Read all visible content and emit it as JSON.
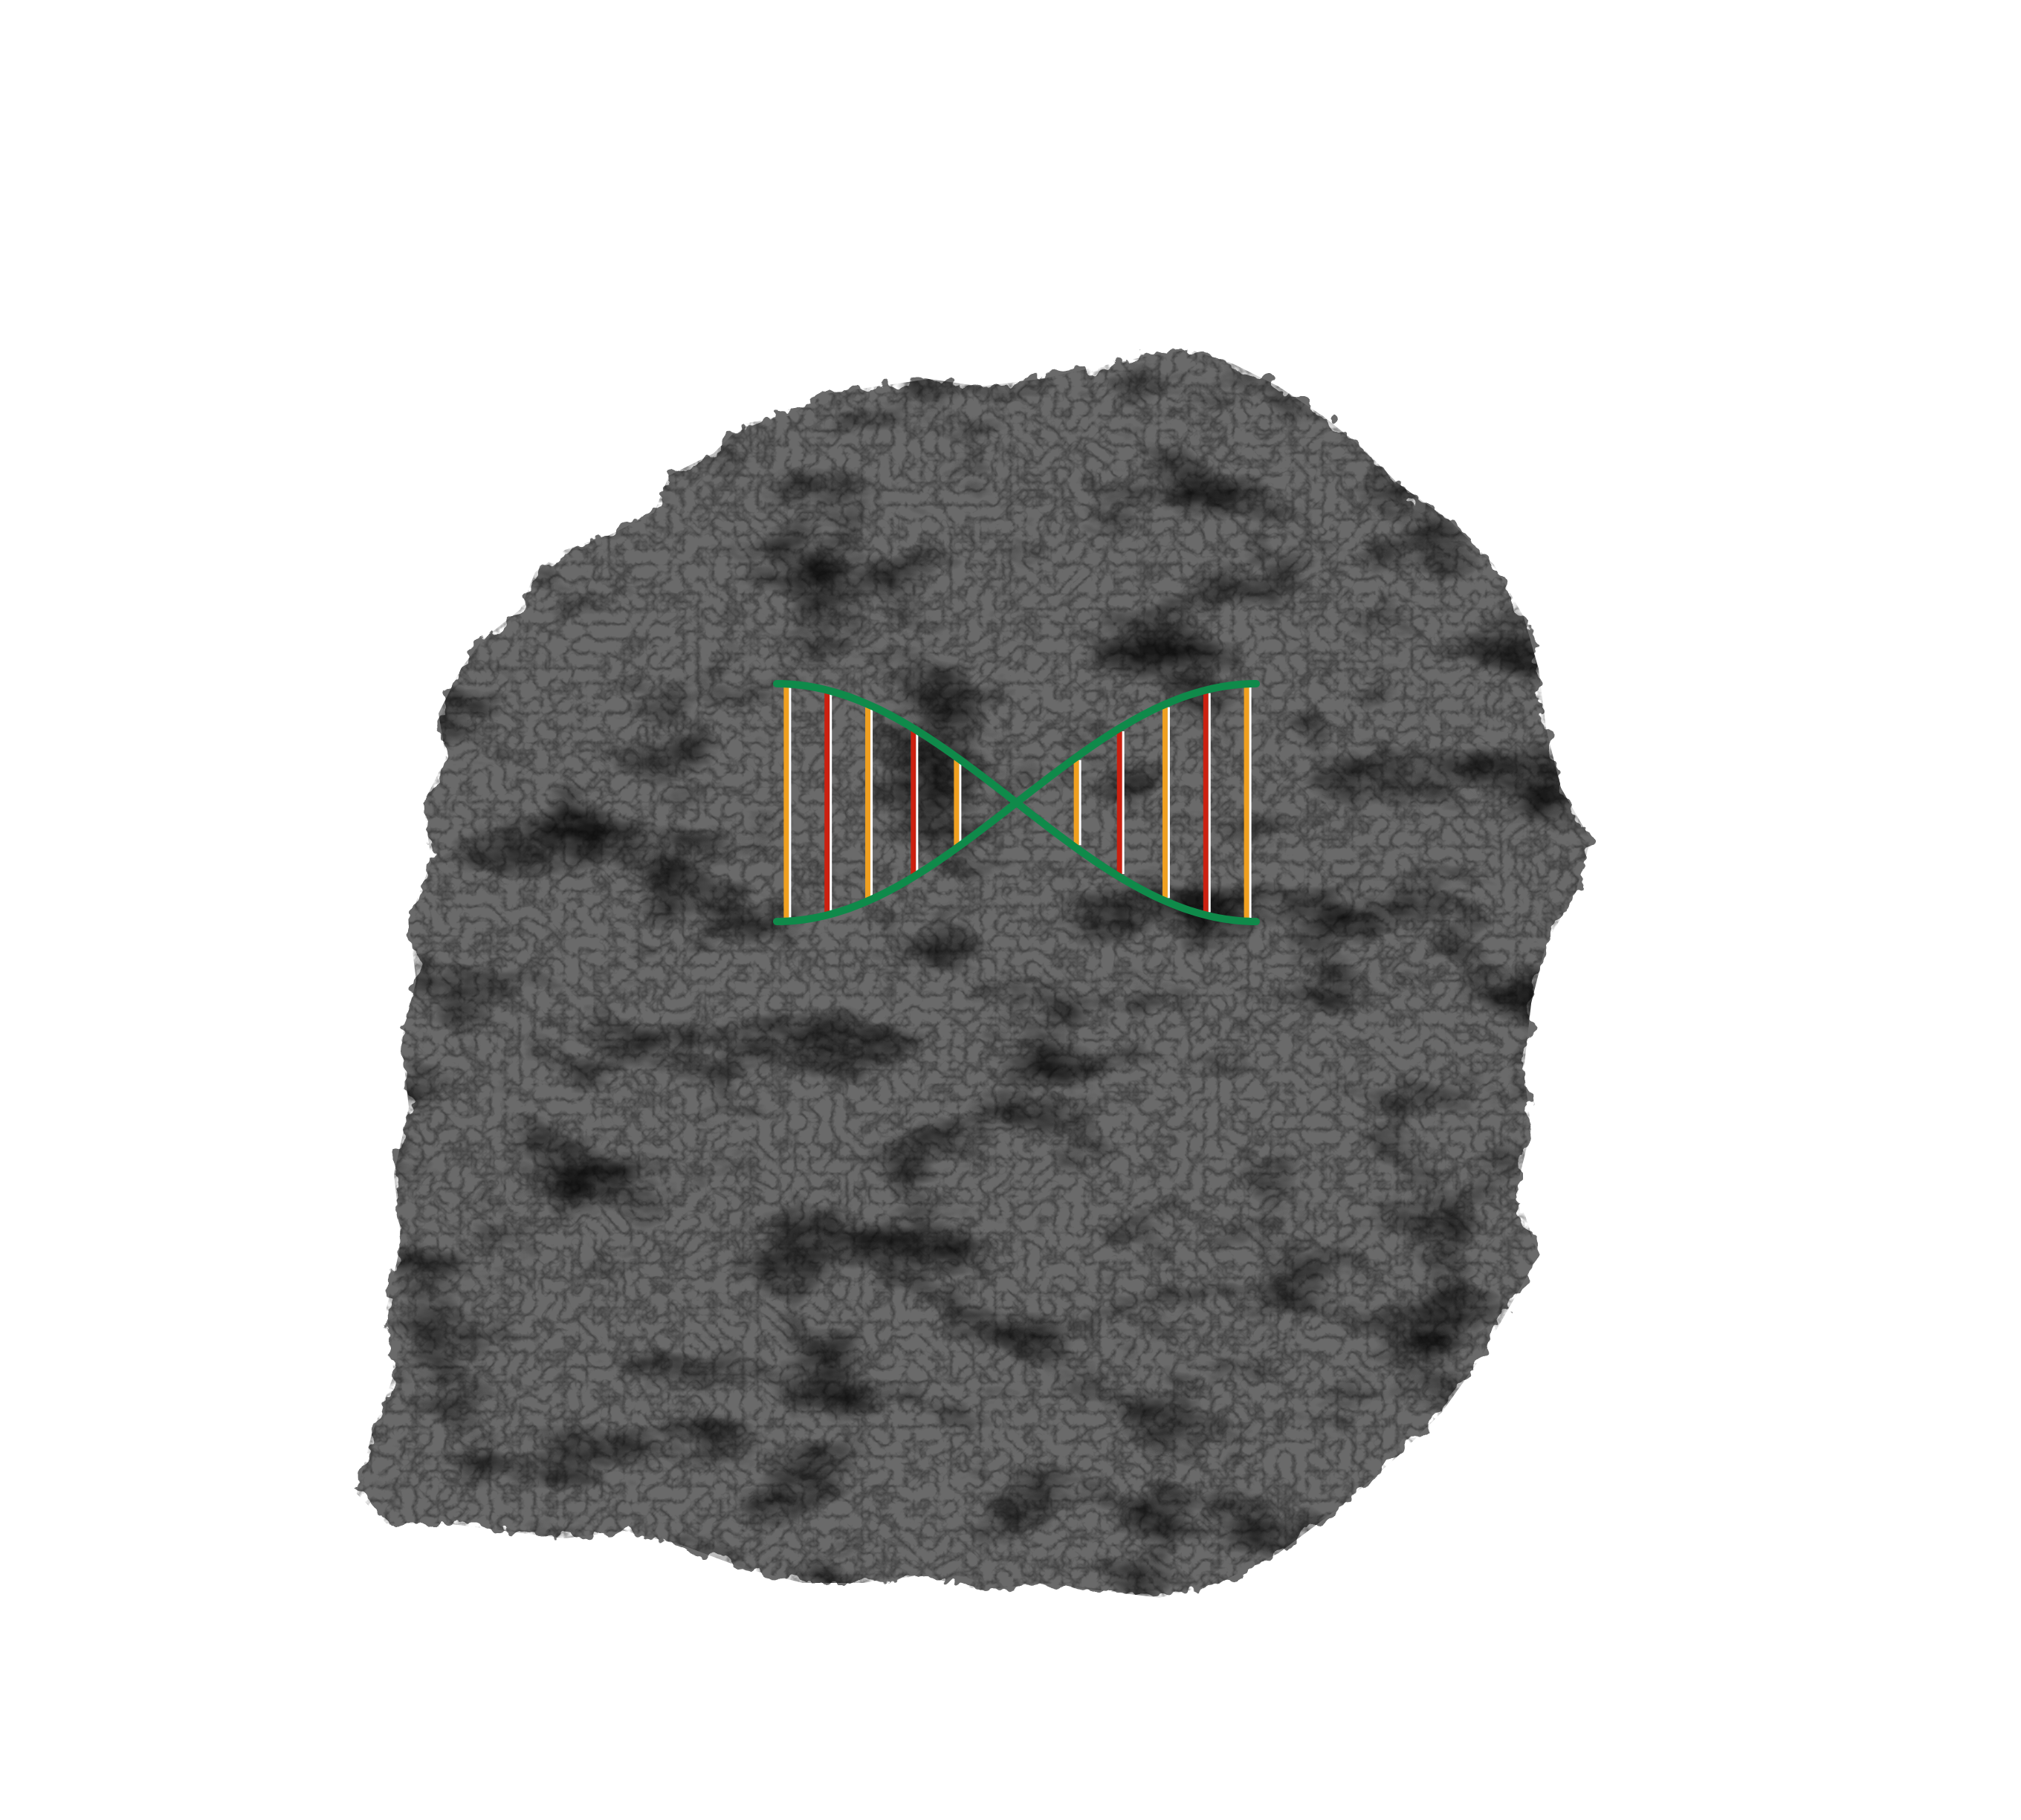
{
  "scene": {
    "background_color": "#ffffff",
    "object_color": "#6b6b6b",
    "shadow_color": "#000000"
  },
  "helix": {
    "backbone_color": "#0f8a4a",
    "rung_colors": [
      "#f0a020",
      "#cc2010",
      "#f0a020",
      "#cc2010",
      "#f0a020",
      "#f0a020",
      "#cc2010",
      "#f0a020",
      "#cc2010",
      "#f0a020"
    ],
    "rung_highlight": "#ffffff"
  }
}
